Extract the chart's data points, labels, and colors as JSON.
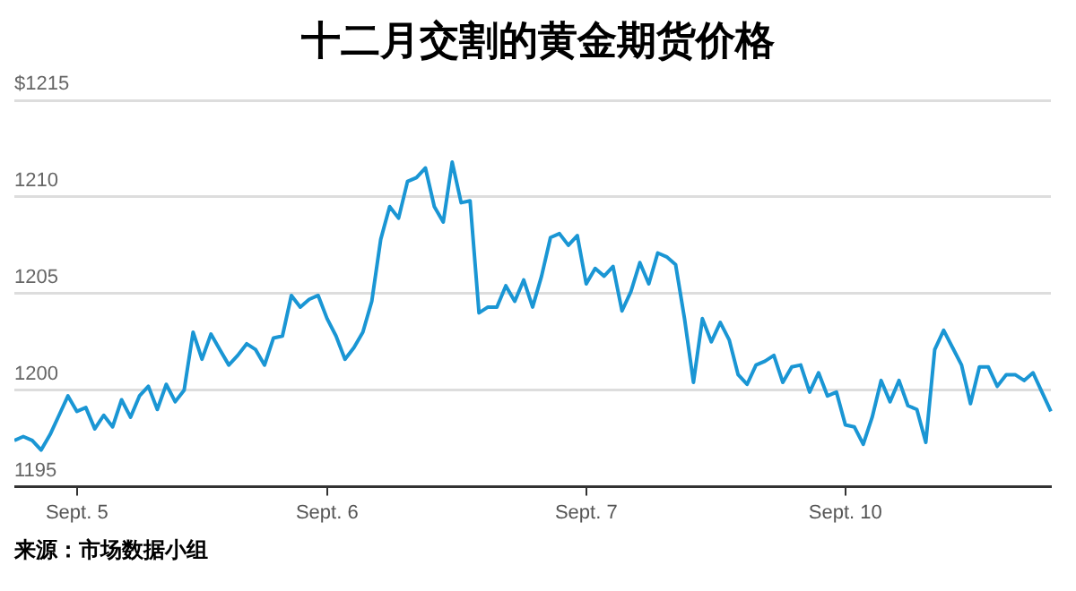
{
  "chart_data": {
    "type": "line",
    "title": "十二月交割的黄金期货价格",
    "annotations": [
      "来源：市场数据小组"
    ],
    "categories": [
      null,
      null,
      null,
      null,
      null,
      null,
      null,
      "Sept. 5",
      null,
      null,
      null,
      null,
      null,
      null,
      null,
      null,
      null,
      null,
      null,
      null,
      null,
      null,
      null,
      null,
      null,
      null,
      null,
      null,
      null,
      null,
      null,
      null,
      null,
      null,
      null,
      "Sept. 6",
      null,
      null,
      null,
      null,
      null,
      null,
      null,
      null,
      null,
      null,
      null,
      null,
      null,
      null,
      null,
      null,
      null,
      null,
      null,
      null,
      null,
      null,
      null,
      null,
      null,
      null,
      null,
      null,
      "Sept. 7",
      null,
      null,
      null,
      null,
      null,
      null,
      null,
      null,
      null,
      null,
      null,
      null,
      null,
      null,
      null,
      null,
      null,
      null,
      null,
      null,
      null,
      null,
      null,
      null,
      null,
      null,
      null,
      null,
      "Sept. 10",
      null,
      null,
      null,
      null,
      null,
      null,
      null,
      null,
      null,
      null,
      null,
      null,
      null,
      null,
      null,
      null,
      null,
      null,
      null,
      null,
      null,
      null,
      null
    ],
    "ylim": [
      1195,
      1215
    ],
    "yticks": [
      1195,
      1200,
      1205,
      1210,
      {
        "value": 1215,
        "label": "$1215"
      }
    ],
    "grid": "y",
    "marker": "none",
    "line_style": "solid",
    "series": [
      {
        "color": "#1a96d4",
        "values": [
          1197.4,
          1197.6,
          1197.4,
          1196.9,
          1197.7,
          1198.7,
          1199.7,
          1198.9,
          1199.1,
          1198,
          1198.7,
          1198.1,
          1199.5,
          1198.6,
          1199.7,
          1200.2,
          1199,
          1200.3,
          1199.4,
          1200,
          1203,
          1201.6,
          1202.9,
          1202.1,
          1201.3,
          1201.8,
          1202.4,
          1202.1,
          1201.3,
          1202.7,
          1202.8,
          1204.9,
          1204.3,
          1204.7,
          1204.9,
          1203.7,
          1202.8,
          1201.6,
          1202.2,
          1203,
          1204.6,
          1207.8,
          1209.5,
          1208.9,
          1210.8,
          1211,
          1211.5,
          1209.5,
          1208.7,
          1211.8,
          1209.7,
          1209.8,
          1204,
          1204.3,
          1204.3,
          1205.4,
          1204.6,
          1205.7,
          1204.3,
          1205.9,
          1207.9,
          1208.1,
          1207.5,
          1208,
          1205.5,
          1206.3,
          1205.9,
          1206.4,
          1204.1,
          1205.1,
          1206.6,
          1205.5,
          1207.1,
          1206.9,
          1206.5,
          1203.7,
          1200.4,
          1203.7,
          1202.5,
          1203.5,
          1202.6,
          1200.8,
          1200.3,
          1201.3,
          1201.5,
          1201.8,
          1200.4,
          1201.2,
          1201.3,
          1199.9,
          1200.9,
          1199.7,
          1199.9,
          1198.2,
          1198.1,
          1197.2,
          1198.6,
          1200.5,
          1199.4,
          1200.5,
          1199.2,
          1199,
          1197.3,
          1202.1,
          1203.1,
          1202.2,
          1201.3,
          1199.3,
          1201.2,
          1201.2,
          1200.2,
          1200.8,
          1200.8,
          1200.5,
          1200.9,
          1199.9,
          1198.9
        ]
      }
    ]
  }
}
